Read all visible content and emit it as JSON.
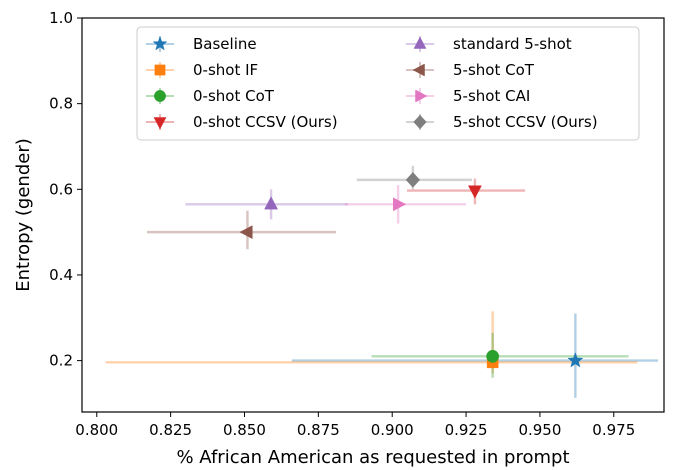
{
  "chart_data": {
    "type": "scatter",
    "xlabel": "% African American as requested in prompt",
    "ylabel": "Entropy (gender)",
    "xlim": [
      0.795,
      0.992
    ],
    "ylim": [
      0.08,
      1.0
    ],
    "x_ticks": [
      "0.800",
      "0.825",
      "0.850",
      "0.875",
      "0.900",
      "0.925",
      "0.950",
      "0.975"
    ],
    "x_tick_values": [
      0.8,
      0.825,
      0.85,
      0.875,
      0.9,
      0.925,
      0.95,
      0.975
    ],
    "y_ticks": [
      "0.2",
      "0.4",
      "0.6",
      "0.8",
      "1.0"
    ],
    "y_tick_values": [
      0.2,
      0.4,
      0.6,
      0.8,
      1.0
    ],
    "grid": false,
    "legend_position": "top-center",
    "series": [
      {
        "name": "Baseline",
        "marker": "star",
        "color": "#1f77b4",
        "x": 0.962,
        "y": 0.2,
        "x_err": [
          0.866,
          0.99
        ],
        "y_err": [
          0.113,
          0.31
        ]
      },
      {
        "name": "0-shot IF",
        "marker": "square",
        "color": "#ff7f0e",
        "x": 0.934,
        "y": 0.196,
        "x_err": [
          0.803,
          0.983
        ],
        "y_err": [
          0.17,
          0.315
        ]
      },
      {
        "name": "0-shot CoT",
        "marker": "circle",
        "color": "#2ca02c",
        "x": 0.934,
        "y": 0.21,
        "x_err": [
          0.893,
          0.98
        ],
        "y_err": [
          0.16,
          0.265
        ]
      },
      {
        "name": "0-shot CCSV (Ours)",
        "marker": "triangle-down",
        "color": "#d62728",
        "x": 0.928,
        "y": 0.597,
        "x_err": [
          0.905,
          0.945
        ],
        "y_err": [
          0.565,
          0.625
        ]
      },
      {
        "name": "standard 5-shot",
        "marker": "triangle-up",
        "color": "#9467bd",
        "x": 0.859,
        "y": 0.565,
        "x_err": [
          0.83,
          0.885
        ],
        "y_err": [
          0.53,
          0.6
        ]
      },
      {
        "name": "5-shot CoT",
        "marker": "triangle-left",
        "color": "#8c564b",
        "x": 0.851,
        "y": 0.5,
        "x_err": [
          0.817,
          0.881
        ],
        "y_err": [
          0.46,
          0.55
        ]
      },
      {
        "name": "5-shot CAI",
        "marker": "triangle-right",
        "color": "#e377c2",
        "x": 0.902,
        "y": 0.565,
        "x_err": [
          0.884,
          0.925
        ],
        "y_err": [
          0.52,
          0.61
        ]
      },
      {
        "name": "5-shot CCSV (Ours)",
        "marker": "diamond",
        "color": "#7f7f7f",
        "x": 0.907,
        "y": 0.622,
        "x_err": [
          0.888,
          0.927
        ],
        "y_err": [
          0.6,
          0.655
        ]
      }
    ]
  }
}
